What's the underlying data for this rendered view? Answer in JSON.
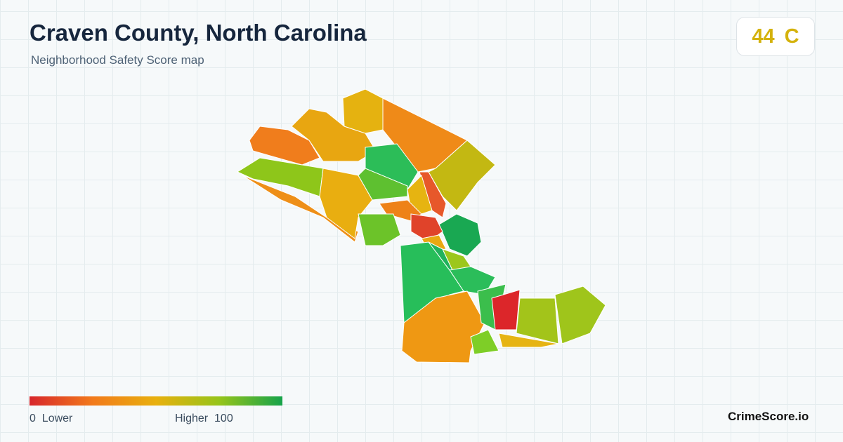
{
  "header": {
    "title": "Craven County, North Carolina",
    "subtitle": "Neighborhood Safety Score map"
  },
  "score": {
    "value": 44,
    "grade": "C"
  },
  "legend": {
    "min": 0,
    "min_label": "Lower",
    "max_label": "Higher",
    "max": 100
  },
  "brand": "CrimeScore.io"
}
